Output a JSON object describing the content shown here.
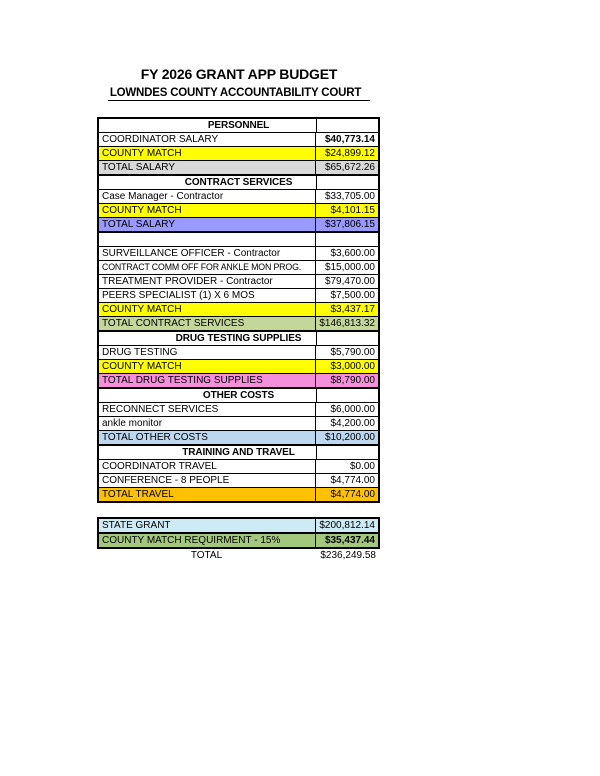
{
  "page": {
    "background": "#ffffff"
  },
  "header": {
    "title": "FY 2026 GRANT APP BUDGET",
    "subtitle": "LOWNDES COUNTY ACCOUNTABILITY COURT"
  },
  "colors": {
    "yellow": "#FFFF00",
    "gray": "#D9D9D9",
    "periwinkle": "#9999FF",
    "olive": "#C4D79B",
    "pink": "#F68FDB",
    "lightblue": "#BDD7EE",
    "orange": "#FFC000",
    "paleblue": "#CDEAF5",
    "green": "#A4C77E",
    "border": "#000000",
    "text": "#000000"
  },
  "main_table": {
    "rows": [
      {
        "type": "section",
        "label": "PERSONNEL"
      },
      {
        "type": "item",
        "label": "COORDINATOR SALARY",
        "value": "$40,773.14",
        "value_bold": true
      },
      {
        "type": "item",
        "label": "COUNTY MATCH",
        "value": "$24,899.12",
        "bg": "yellow"
      },
      {
        "type": "item",
        "label": "TOTAL SALARY",
        "value": "$65,672.26",
        "bg": "gray"
      },
      {
        "type": "section",
        "label": "CONTRACT SERVICES"
      },
      {
        "type": "item",
        "label": "Case Manager - Contractor",
        "value": "$33,705.00"
      },
      {
        "type": "item",
        "label": "COUNTY MATCH",
        "value": "$4,101.15",
        "bg": "yellow"
      },
      {
        "type": "item",
        "label": "TOTAL SALARY",
        "value": "$37,806.15",
        "bg": "periwinkle",
        "thick_bottom": true
      },
      {
        "type": "empty"
      },
      {
        "type": "item",
        "label": "SURVEILLANCE OFFICER - Contractor",
        "value": "$3,600.00"
      },
      {
        "type": "item",
        "label": "CONTRACT COMM OFF FOR ANKLE MON PROG.",
        "value": "$15,000.00"
      },
      {
        "type": "item",
        "label": "TREATMENT PROVIDER - Contractor",
        "value": "$79,470.00"
      },
      {
        "type": "item",
        "label": "PEERS SPECIALIST (1) X 6 MOS",
        "value": "$7,500.00"
      },
      {
        "type": "item",
        "label": "COUNTY MATCH",
        "value": "$3,437.17",
        "bg": "yellow"
      },
      {
        "type": "item",
        "label": "TOTAL CONTRACT SERVICES",
        "value": "$146,813.32",
        "bg": "olive"
      },
      {
        "type": "section",
        "label": "DRUG TESTING SUPPLIES"
      },
      {
        "type": "item",
        "label": "DRUG TESTING",
        "value": "$5,790.00"
      },
      {
        "type": "item",
        "label": "COUNTY MATCH",
        "value": "$3,000.00",
        "bg": "yellow"
      },
      {
        "type": "item",
        "label": "TOTAL DRUG TESTING SUPPLIES",
        "value": "$8,790.00",
        "bg": "pink"
      },
      {
        "type": "section",
        "label": "OTHER COSTS"
      },
      {
        "type": "item",
        "label": "RECONNECT SERVICES",
        "value": "$6,000.00"
      },
      {
        "type": "item",
        "label": "ankle monitor",
        "value": "$4,200.00"
      },
      {
        "type": "item",
        "label": "TOTAL OTHER COSTS",
        "value": "$10,200.00",
        "bg": "lightblue"
      },
      {
        "type": "section",
        "label": "TRAINING AND TRAVEL"
      },
      {
        "type": "item",
        "label": "COORDINATOR TRAVEL",
        "value": "$0.00"
      },
      {
        "type": "item",
        "label": "CONFERENCE - 8 PEOPLE",
        "value": "$4,774.00"
      },
      {
        "type": "item",
        "label": "TOTAL TRAVEL",
        "value": "$4,774.00",
        "bg": "orange"
      }
    ]
  },
  "summary_table": {
    "rows": [
      {
        "type": "item",
        "label": "STATE GRANT",
        "value": "$200,812.14",
        "bg": "paleblue"
      },
      {
        "type": "item",
        "label": "COUNTY MATCH REQUIRMENT - 15%",
        "value": "$35,437.44",
        "bg": "green",
        "value_bold": true
      },
      {
        "type": "total",
        "label": "TOTAL",
        "value": "$236,249.58"
      }
    ]
  }
}
